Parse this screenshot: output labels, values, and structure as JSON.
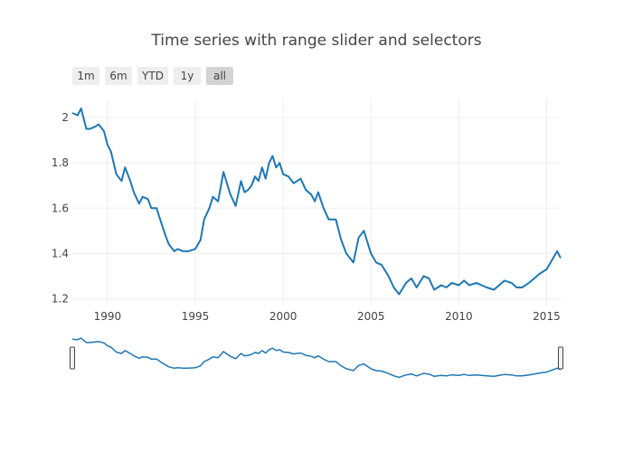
{
  "chart_data": {
    "type": "line",
    "title": "Time series with range slider and selectors",
    "xlabel": "",
    "ylabel": "",
    "xlim": [
      1988.0,
      2015.8
    ],
    "ylim": [
      1.17,
      2.08
    ],
    "x_ticks": [
      {
        "value": 1990,
        "label": "1990"
      },
      {
        "value": 1995,
        "label": "1995"
      },
      {
        "value": 2000,
        "label": "2000"
      },
      {
        "value": 2005,
        "label": "2005"
      },
      {
        "value": 2010,
        "label": "2010"
      },
      {
        "value": 2015,
        "label": "2015"
      }
    ],
    "y_ticks": [
      {
        "value": 2.0,
        "label": "2"
      },
      {
        "value": 1.8,
        "label": "1.8"
      },
      {
        "value": 1.6,
        "label": "1.6"
      },
      {
        "value": 1.4,
        "label": "1.4"
      },
      {
        "value": 1.2,
        "label": "1.2"
      }
    ],
    "grid": true,
    "range_selector": {
      "buttons": [
        "1m",
        "6m",
        "YTD",
        "1y",
        "all"
      ],
      "active": "all"
    },
    "range_slider": true,
    "series": [
      {
        "color": "#1f77b4",
        "x": [
          1988.0,
          1988.3,
          1988.5,
          1988.8,
          1989.0,
          1989.3,
          1989.5,
          1989.8,
          1990.0,
          1990.2,
          1990.5,
          1990.8,
          1991.0,
          1991.3,
          1991.5,
          1991.8,
          1992.0,
          1992.3,
          1992.5,
          1992.8,
          1993.0,
          1993.3,
          1993.5,
          1993.8,
          1994.0,
          1994.3,
          1994.6,
          1995.0,
          1995.3,
          1995.5,
          1995.8,
          1996.0,
          1996.3,
          1996.6,
          1997.0,
          1997.3,
          1997.6,
          1997.8,
          1998.0,
          1998.2,
          1998.4,
          1998.6,
          1998.8,
          1999.0,
          1999.2,
          1999.4,
          1999.6,
          1999.8,
          2000.0,
          2000.3,
          2000.6,
          2001.0,
          2001.3,
          2001.6,
          2001.8,
          2002.0,
          2002.3,
          2002.6,
          2003.0,
          2003.3,
          2003.6,
          2004.0,
          2004.3,
          2004.6,
          2005.0,
          2005.3,
          2005.6,
          2006.0,
          2006.3,
          2006.6,
          2007.0,
          2007.3,
          2007.6,
          2008.0,
          2008.3,
          2008.6,
          2009.0,
          2009.3,
          2009.6,
          2010.0,
          2010.3,
          2010.6,
          2011.0,
          2011.3,
          2011.6,
          2012.0,
          2012.3,
          2012.6,
          2013.0,
          2013.3,
          2013.6,
          2014.0,
          2014.3,
          2014.6,
          2015.0,
          2015.3,
          2015.6,
          2015.8
        ],
        "values": [
          2.02,
          2.01,
          2.04,
          1.95,
          1.95,
          1.96,
          1.97,
          1.94,
          1.88,
          1.85,
          1.75,
          1.72,
          1.78,
          1.72,
          1.67,
          1.62,
          1.65,
          1.64,
          1.6,
          1.6,
          1.55,
          1.48,
          1.44,
          1.41,
          1.42,
          1.41,
          1.41,
          1.42,
          1.46,
          1.55,
          1.6,
          1.65,
          1.63,
          1.76,
          1.66,
          1.61,
          1.72,
          1.67,
          1.68,
          1.7,
          1.74,
          1.72,
          1.78,
          1.73,
          1.8,
          1.83,
          1.78,
          1.8,
          1.75,
          1.74,
          1.71,
          1.73,
          1.68,
          1.66,
          1.63,
          1.67,
          1.6,
          1.55,
          1.55,
          1.46,
          1.4,
          1.36,
          1.47,
          1.5,
          1.4,
          1.36,
          1.35,
          1.3,
          1.25,
          1.22,
          1.27,
          1.29,
          1.25,
          1.3,
          1.29,
          1.24,
          1.26,
          1.25,
          1.27,
          1.26,
          1.28,
          1.26,
          1.27,
          1.26,
          1.25,
          1.24,
          1.26,
          1.28,
          1.27,
          1.25,
          1.25,
          1.27,
          1.29,
          1.31,
          1.33,
          1.37,
          1.41,
          1.38
        ]
      }
    ]
  }
}
